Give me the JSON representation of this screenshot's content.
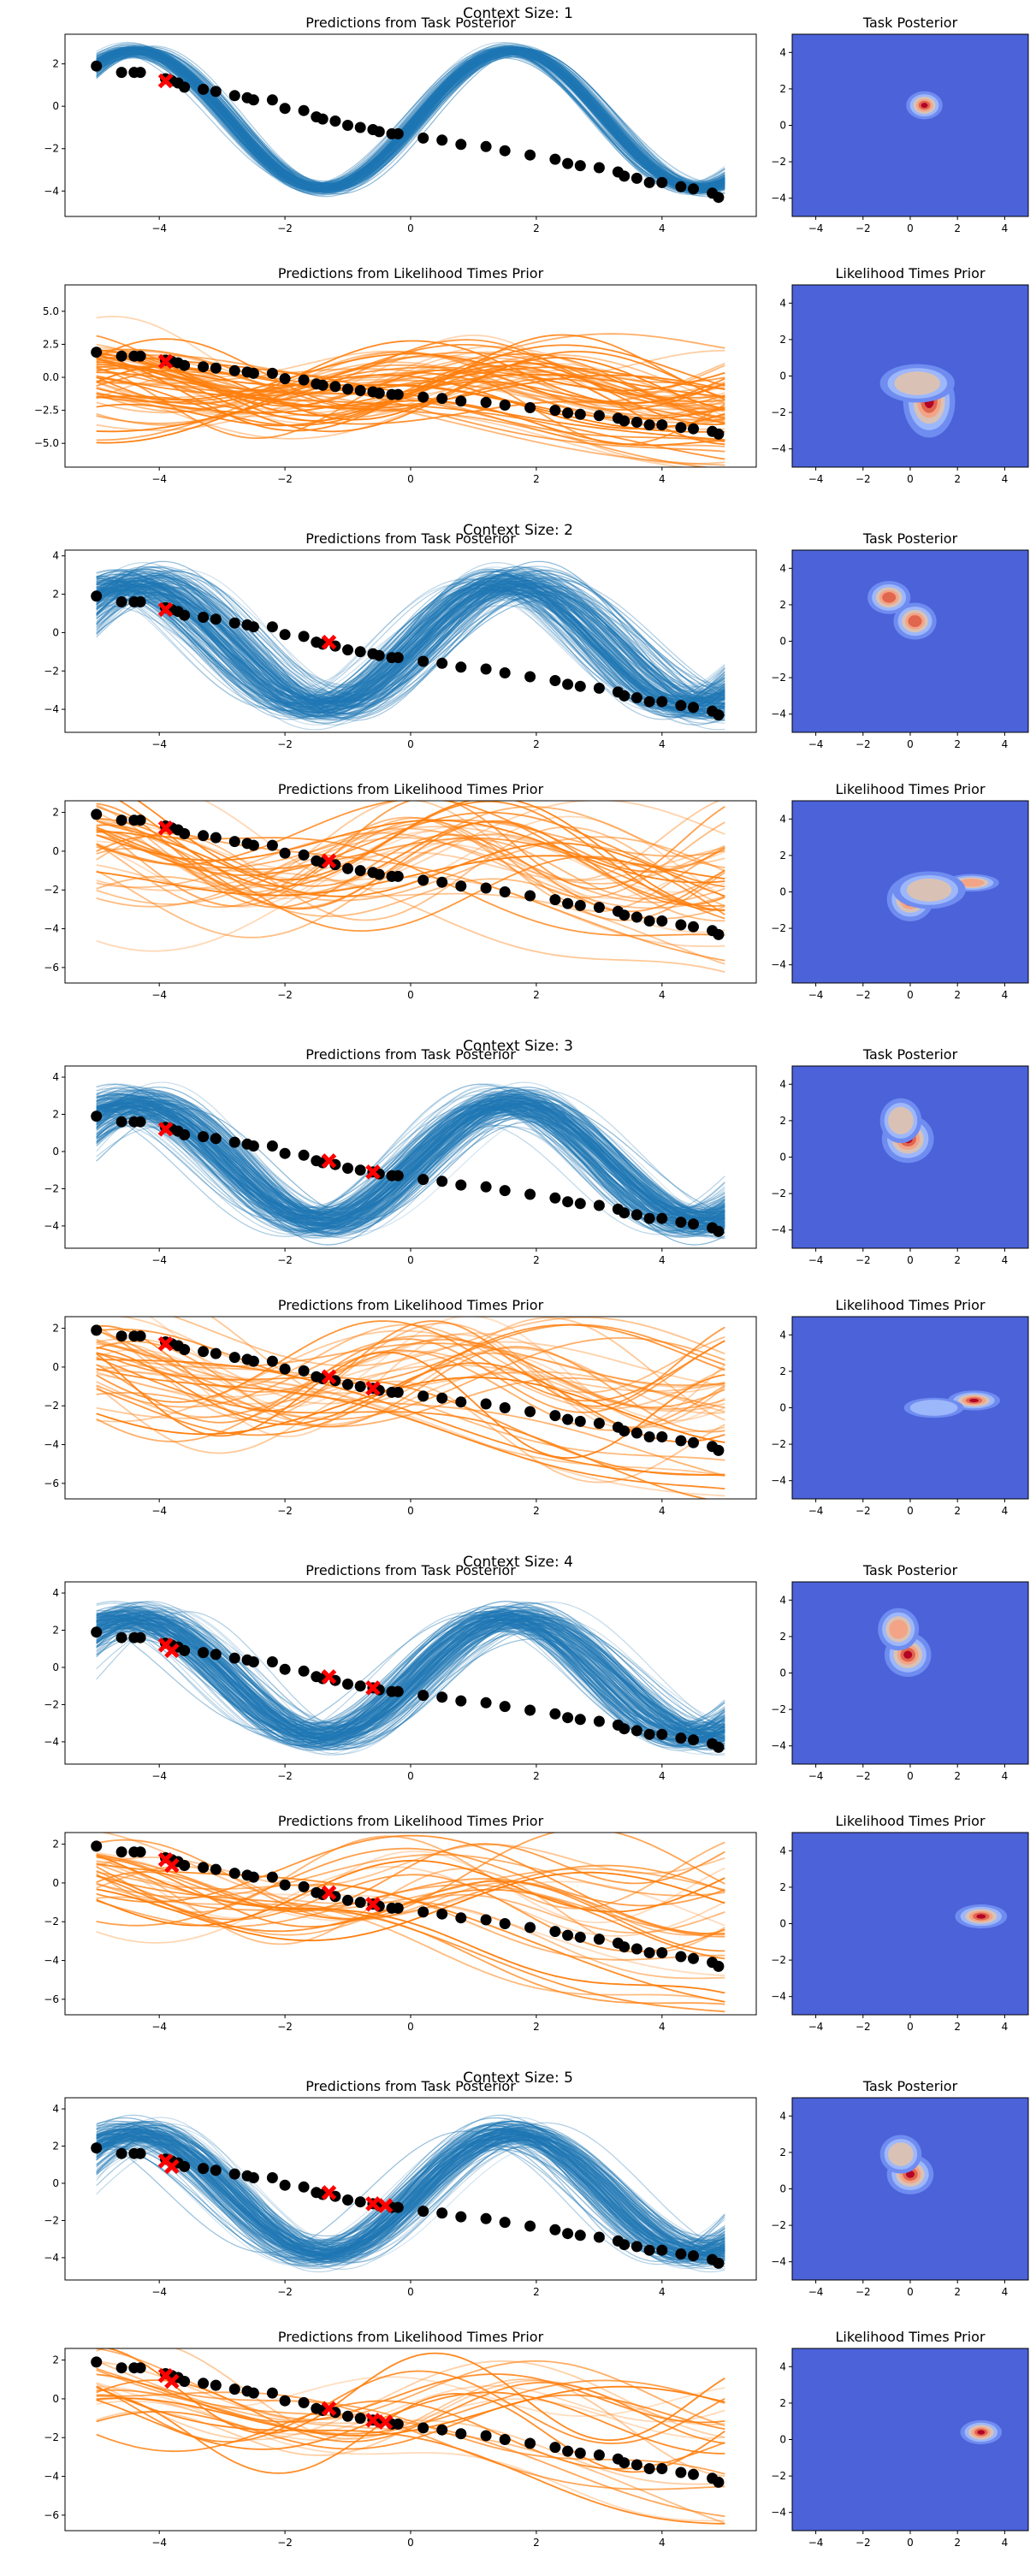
{
  "figure": {
    "context_titles": [
      "Context Size: 1",
      "Context Size: 2",
      "Context Size: 3",
      "Context Size: 4",
      "Context Size: 5"
    ]
  },
  "colors": {
    "posterior_lines": "#1f77b4",
    "likelihood_lines": "#ff7f0e",
    "data_points": "#000000",
    "context_markers": "#ff0000",
    "contour_background": "#4b62d9",
    "contour_levels": [
      "#6f8cf0",
      "#9db7fb",
      "#d9c2b5",
      "#f3a487",
      "#e0664e",
      "#b40426"
    ]
  },
  "chart_data": {
    "type": "line",
    "data_points": {
      "x": [
        -5.0,
        -4.6,
        -4.4,
        -4.3,
        -3.9,
        -3.8,
        -3.7,
        -3.6,
        -3.3,
        -3.1,
        -2.8,
        -2.6,
        -2.5,
        -2.2,
        -2.0,
        -1.7,
        -1.5,
        -1.4,
        -1.2,
        -1.0,
        -0.8,
        -0.6,
        -0.5,
        -0.3,
        -0.2,
        0.2,
        0.5,
        0.8,
        1.2,
        1.5,
        1.9,
        2.3,
        2.5,
        2.7,
        3.0,
        3.3,
        3.4,
        3.6,
        3.8,
        4.0,
        4.3,
        4.5,
        4.8,
        4.9
      ],
      "y": [
        1.9,
        1.6,
        1.6,
        1.6,
        1.3,
        1.2,
        1.1,
        0.9,
        0.8,
        0.7,
        0.5,
        0.4,
        0.3,
        0.3,
        -0.1,
        -0.2,
        -0.5,
        -0.6,
        -0.7,
        -0.9,
        -1.0,
        -1.1,
        -1.2,
        -1.3,
        -1.3,
        -1.5,
        -1.6,
        -1.8,
        -1.9,
        -2.1,
        -2.3,
        -2.5,
        -2.7,
        -2.8,
        -2.9,
        -3.1,
        -3.3,
        -3.4,
        -3.6,
        -3.6,
        -3.8,
        -3.9,
        -4.1,
        -4.3
      ]
    },
    "context_points": [
      {
        "x": -3.9,
        "y": 1.2
      },
      {
        "x": -1.3,
        "y": -0.5
      },
      {
        "x": -0.6,
        "y": -1.1
      },
      {
        "x": -3.8,
        "y": 0.9
      },
      {
        "x": -0.4,
        "y": -1.2
      }
    ],
    "rows": [
      {
        "context": 1,
        "kind": "posterior",
        "title": "Predictions from Task Posterior",
        "ylim": [
          -5.2,
          3.4
        ],
        "yticks": [
          -4,
          -2,
          0,
          2
        ],
        "n_lines": 170,
        "spread": 0.25,
        "contour_title": "Task Posterior",
        "blobs": [
          {
            "x": 0.6,
            "y": 1.1,
            "sx": 0.35,
            "sy": 0.35,
            "w": 1.0
          }
        ]
      },
      {
        "context": 1,
        "kind": "likelihood",
        "title": "Predictions from Likelihood Times Prior",
        "ylim": [
          -6.8,
          7.0
        ],
        "yticks": [
          -5.0,
          -2.5,
          0.0,
          2.5,
          5.0
        ],
        "n_lines": 60,
        "spread": 1.0,
        "contour_title": "Likelihood Times Prior",
        "blobs": [
          {
            "x": 0.8,
            "y": -1.4,
            "sx": 0.5,
            "sy": 0.9,
            "w": 1.0
          },
          {
            "x": 0.3,
            "y": -0.4,
            "sx": 0.9,
            "sy": 0.6,
            "w": 0.5
          }
        ]
      },
      {
        "context": 2,
        "kind": "posterior",
        "title": "Predictions from Task Posterior",
        "ylim": [
          -5.2,
          4.3
        ],
        "yticks": [
          -4,
          -2,
          0,
          2,
          4
        ],
        "n_lines": 200,
        "spread": 0.8,
        "contour_title": "Task Posterior",
        "blobs": [
          {
            "x": -0.9,
            "y": 2.4,
            "sx": 0.45,
            "sy": 0.45,
            "w": 0.8
          },
          {
            "x": 0.2,
            "y": 1.1,
            "sx": 0.45,
            "sy": 0.5,
            "w": 0.8
          }
        ]
      },
      {
        "context": 2,
        "kind": "likelihood",
        "title": "Predictions from Likelihood Times Prior",
        "ylim": [
          -6.8,
          2.6
        ],
        "yticks": [
          -6,
          -4,
          -2,
          0,
          2
        ],
        "n_lines": 40,
        "spread": 0.9,
        "contour_title": "Likelihood Times Prior",
        "blobs": [
          {
            "x": 0.0,
            "y": -0.4,
            "sx": 0.45,
            "sy": 0.55,
            "w": 1.0
          },
          {
            "x": 2.6,
            "y": 0.5,
            "sx": 0.6,
            "sy": 0.25,
            "w": 0.7
          },
          {
            "x": 0.8,
            "y": 0.1,
            "sx": 0.9,
            "sy": 0.6,
            "w": 0.45
          }
        ]
      },
      {
        "context": 3,
        "kind": "posterior",
        "title": "Predictions from Task Posterior",
        "ylim": [
          -5.2,
          4.6
        ],
        "yticks": [
          -4,
          -2,
          0,
          2,
          4
        ],
        "n_lines": 200,
        "spread": 0.75,
        "contour_title": "Task Posterior",
        "blobs": [
          {
            "x": -0.1,
            "y": 1.0,
            "sx": 0.5,
            "sy": 0.6,
            "w": 1.0
          },
          {
            "x": -0.4,
            "y": 2.0,
            "sx": 0.5,
            "sy": 0.7,
            "w": 0.5
          }
        ]
      },
      {
        "context": 3,
        "kind": "likelihood",
        "title": "Predictions from Likelihood Times Prior",
        "ylim": [
          -6.8,
          2.6
        ],
        "yticks": [
          -6,
          -4,
          -2,
          0,
          2
        ],
        "n_lines": 40,
        "spread": 0.9,
        "contour_title": "Likelihood Times Prior",
        "blobs": [
          {
            "x": 2.7,
            "y": 0.4,
            "sx": 0.5,
            "sy": 0.25,
            "w": 1.0
          },
          {
            "x": 1.0,
            "y": 0.0,
            "sx": 0.8,
            "sy": 0.35,
            "w": 0.3
          }
        ]
      },
      {
        "context": 4,
        "kind": "posterior",
        "title": "Predictions from Task Posterior",
        "ylim": [
          -5.2,
          4.6
        ],
        "yticks": [
          -4,
          -2,
          0,
          2,
          4
        ],
        "n_lines": 180,
        "spread": 0.7,
        "contour_title": "Task Posterior",
        "blobs": [
          {
            "x": -0.1,
            "y": 1.0,
            "sx": 0.45,
            "sy": 0.55,
            "w": 1.0
          },
          {
            "x": -0.5,
            "y": 2.4,
            "sx": 0.45,
            "sy": 0.6,
            "w": 0.7
          }
        ]
      },
      {
        "context": 4,
        "kind": "likelihood",
        "title": "Predictions from Likelihood Times Prior",
        "ylim": [
          -6.8,
          2.6
        ],
        "yticks": [
          -6,
          -4,
          -2,
          0,
          2
        ],
        "n_lines": 30,
        "spread": 0.7,
        "contour_title": "Likelihood Times Prior",
        "blobs": [
          {
            "x": 3.0,
            "y": 0.4,
            "sx": 0.5,
            "sy": 0.3,
            "w": 1.0
          }
        ]
      },
      {
        "context": 5,
        "kind": "posterior",
        "title": "Predictions from Task Posterior",
        "ylim": [
          -5.2,
          4.6
        ],
        "yticks": [
          -4,
          -2,
          0,
          2,
          4
        ],
        "n_lines": 170,
        "spread": 0.7,
        "contour_title": "Task Posterior",
        "blobs": [
          {
            "x": 0.0,
            "y": 0.8,
            "sx": 0.45,
            "sy": 0.5,
            "w": 1.0
          },
          {
            "x": -0.4,
            "y": 1.9,
            "sx": 0.5,
            "sy": 0.6,
            "w": 0.5
          }
        ]
      },
      {
        "context": 5,
        "kind": "likelihood",
        "title": "Predictions from Likelihood Times Prior",
        "ylim": [
          -6.8,
          2.6
        ],
        "yticks": [
          -6,
          -4,
          -2,
          0,
          2
        ],
        "n_lines": 24,
        "spread": 0.7,
        "contour_title": "Likelihood Times Prior",
        "blobs": [
          {
            "x": 3.0,
            "y": 0.4,
            "sx": 0.4,
            "sy": 0.3,
            "w": 1.0
          }
        ]
      }
    ],
    "line_xlim": [
      -5.5,
      5.5
    ],
    "line_xticks": [
      -4,
      -2,
      0,
      2,
      4
    ],
    "contour_lim": [
      -5,
      5
    ],
    "contour_ticks": [
      -4,
      -2,
      0,
      2,
      4
    ]
  }
}
